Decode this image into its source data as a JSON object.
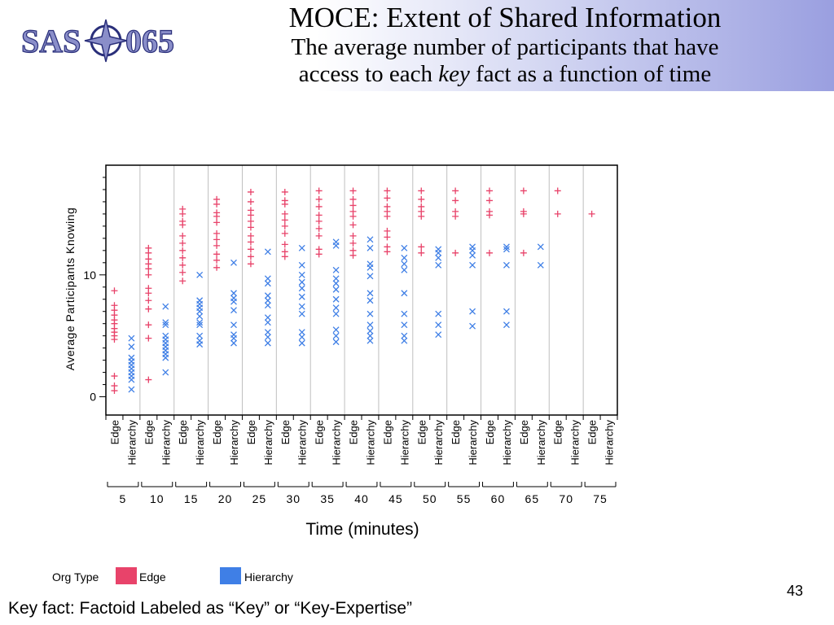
{
  "slide": {
    "title": "MOCE: Extent of Shared Information",
    "subtitle_pre": "The average number of participants that have",
    "subtitle_mid": "access to each ",
    "subtitle_key": "key",
    "subtitle_post": " fact as a function of time",
    "logo_left": "SAS",
    "logo_right": "065",
    "slide_number": "43",
    "footnote": "Key fact:  Factoid Labeled as “Key” or “Key-Expertise”"
  },
  "legend": {
    "title": "Org Type",
    "items": [
      {
        "label": "Edge",
        "color": "#e8436a"
      },
      {
        "label": "Hierarchy",
        "color": "#3f7fe6"
      }
    ]
  },
  "colors": {
    "edge": "#e8436a",
    "hierarchy": "#3f7fe6",
    "grid": "#bfbfbf",
    "header_accent": "#9a9fe0"
  },
  "chart_data": {
    "type": "scatter",
    "xlabel": "Time (minutes)",
    "ylabel": "Average Participants Knowing",
    "y_ticks": [
      0,
      10
    ],
    "ylim": [
      -1.5,
      19
    ],
    "group_labels": [
      "Edge",
      "Hierarchy"
    ],
    "times": [
      "5",
      "10",
      "15",
      "20",
      "25",
      "30",
      "35",
      "40",
      "45",
      "50",
      "55",
      "60",
      "65",
      "70",
      "75"
    ],
    "series": [
      {
        "name": "Edge",
        "marker": "+",
        "points_by_time": [
          [
            0.5,
            0.9,
            1.7,
            4.7,
            5.0,
            5.3,
            5.6,
            6.0,
            6.3,
            6.7,
            7.1,
            7.5,
            8.7
          ],
          [
            1.4,
            4.8,
            5.9,
            7.2,
            7.9,
            8.5,
            8.9,
            10.0,
            10.5,
            10.9,
            11.3,
            11.8,
            12.2
          ],
          [
            9.5,
            10.2,
            10.8,
            11.4,
            12.0,
            12.6,
            13.2,
            14.1,
            14.4,
            15.0,
            15.4
          ],
          [
            10.6,
            11.2,
            11.7,
            12.4,
            12.9,
            13.4,
            14.3,
            14.8,
            15.1,
            15.8,
            16.2
          ],
          [
            10.9,
            11.5,
            12.1,
            12.7,
            13.2,
            13.9,
            14.4,
            14.9,
            15.3,
            16.0,
            16.8
          ],
          [
            11.5,
            11.9,
            12.5,
            13.4,
            14.0,
            14.5,
            15.0,
            15.8,
            16.1,
            16.8
          ],
          [
            11.7,
            12.1,
            13.2,
            13.8,
            14.4,
            14.9,
            15.6,
            16.2,
            16.9
          ],
          [
            11.6,
            12.0,
            12.6,
            13.2,
            14.1,
            14.8,
            15.2,
            15.7,
            16.2,
            16.9
          ],
          [
            11.9,
            12.3,
            13.1,
            13.6,
            14.8,
            15.2,
            15.6,
            16.3,
            16.9
          ],
          [
            11.8,
            12.3,
            14.8,
            15.2,
            15.6,
            16.2,
            16.9
          ],
          [
            11.8,
            14.8,
            15.2,
            16.1,
            16.9
          ],
          [
            11.8,
            14.9,
            15.2,
            16.1,
            16.9
          ],
          [
            11.8,
            15.0,
            15.2,
            16.9
          ],
          [
            15.0,
            16.9
          ],
          [
            15.0
          ]
        ]
      },
      {
        "name": "Hierarchy",
        "marker": "x",
        "points_by_time": [
          [
            0.6,
            1.4,
            1.7,
            2.0,
            2.3,
            2.6,
            2.9,
            3.2,
            4.1,
            4.8
          ],
          [
            2.0,
            3.2,
            3.5,
            3.8,
            4.1,
            4.4,
            4.7,
            5.0,
            5.9,
            6.1,
            7.4
          ],
          [
            4.3,
            4.6,
            5.0,
            5.9,
            6.1,
            6.6,
            7.0,
            7.3,
            7.6,
            7.9,
            10.0
          ],
          [
            4.4,
            4.8,
            5.1,
            5.9,
            7.1,
            7.8,
            8.1,
            8.5,
            11.0
          ],
          [
            4.4,
            4.9,
            5.3,
            6.1,
            6.5,
            7.5,
            7.9,
            8.3,
            9.3,
            9.7,
            11.9
          ],
          [
            4.4,
            4.9,
            5.3,
            6.8,
            7.4,
            8.2,
            8.9,
            9.4,
            10.0,
            10.8,
            12.2
          ],
          [
            4.5,
            5.0,
            5.5,
            6.8,
            7.3,
            8.0,
            8.8,
            9.3,
            9.7,
            10.4,
            12.4,
            12.7
          ],
          [
            4.6,
            5.0,
            5.4,
            5.9,
            6.8,
            7.9,
            8.5,
            9.9,
            10.6,
            10.9,
            12.2,
            12.9
          ],
          [
            4.6,
            5.0,
            5.9,
            6.8,
            8.5,
            10.4,
            10.9,
            11.4,
            12.2
          ],
          [
            5.1,
            5.9,
            6.8,
            10.8,
            11.4,
            11.8,
            12.1
          ],
          [
            5.8,
            7.0,
            10.8,
            11.6,
            12.0,
            12.3
          ],
          [
            5.9,
            7.0,
            10.8,
            12.1,
            12.3
          ],
          [
            10.8,
            12.3
          ],
          [],
          []
        ]
      }
    ]
  }
}
